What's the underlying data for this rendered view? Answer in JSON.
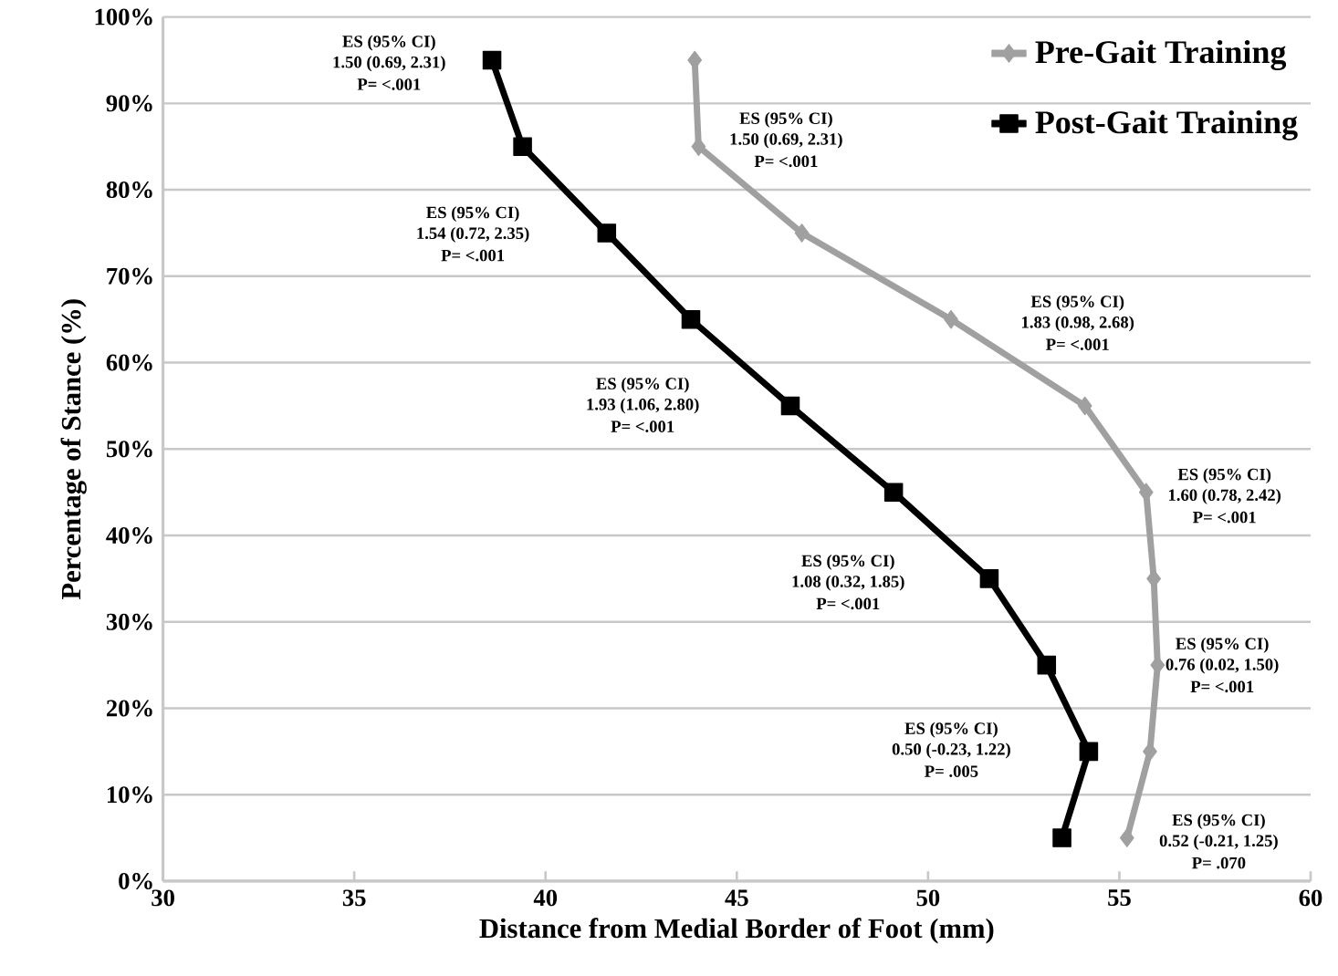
{
  "chart_data": {
    "type": "line",
    "xlabel": "Distance from Medial Border of Foot (mm)",
    "ylabel": "Percentage of Stance (%)",
    "xlim": [
      30,
      60
    ],
    "xticks": [
      30,
      35,
      40,
      45,
      50,
      55,
      60
    ],
    "ylim": [
      0,
      100
    ],
    "yticks": [
      {
        "value": 0,
        "label": "0%"
      },
      {
        "value": 10,
        "label": "10%"
      },
      {
        "value": 20,
        "label": "20%"
      },
      {
        "value": 30,
        "label": "30%"
      },
      {
        "value": 40,
        "label": "40%"
      },
      {
        "value": 50,
        "label": "50%"
      },
      {
        "value": 60,
        "label": "60%"
      },
      {
        "value": 70,
        "label": "70%"
      },
      {
        "value": 80,
        "label": "80%"
      },
      {
        "value": 90,
        "label": "90%"
      },
      {
        "value": 100,
        "label": "100%"
      }
    ],
    "grid": "y",
    "legend": "top right",
    "line_style": "solid",
    "series": [
      {
        "name": "Pre-Gait Training",
        "color": "#a0a0a0",
        "marker": "diamond",
        "x": [
          43.9,
          44.0,
          46.7,
          50.6,
          54.1,
          55.7,
          55.9,
          56.0,
          55.8,
          55.2
        ],
        "values": [
          95,
          85,
          75,
          65,
          55,
          45,
          35,
          25,
          15,
          5
        ]
      },
      {
        "name": "Post-Gait Training",
        "color": "#000000",
        "marker": "square",
        "x": [
          38.6,
          39.4,
          41.6,
          43.8,
          46.4,
          49.1,
          51.6,
          53.1,
          54.2,
          53.5
        ],
        "values": [
          95,
          85,
          75,
          65,
          55,
          45,
          35,
          25,
          15,
          5
        ]
      }
    ],
    "annotations": [
      "ES (95% CI)",
      "1.50 (0.69, 2.31)",
      "P= <.001",
      "ES (95% CI)",
      "1.50 (0.69, 2.31)",
      "P= <.001",
      "ES (95% CI)",
      "1.54 (0.72, 2.35)",
      "P= <.001",
      "ES (95% CI)",
      "1.83 (0.98, 2.68)",
      "P= <.001",
      "ES (95% CI)",
      "1.93 (1.06, 2.80)",
      "P= <.001",
      "ES (95% CI)",
      "1.60 (0.78, 2.42)",
      "P= <.001",
      "ES (95% CI)",
      "1.08 (0.32, 1.85)",
      "P= <.001",
      "ES (95% CI)",
      "0.76 (0.02, 1.50)",
      "P= <.001",
      "ES (95% CI)",
      "0.50 (-0.23, 1.22)",
      "P= .005",
      "ES (95% CI)",
      "0.52 (-0.21, 1.25)",
      "P= .070"
    ]
  }
}
